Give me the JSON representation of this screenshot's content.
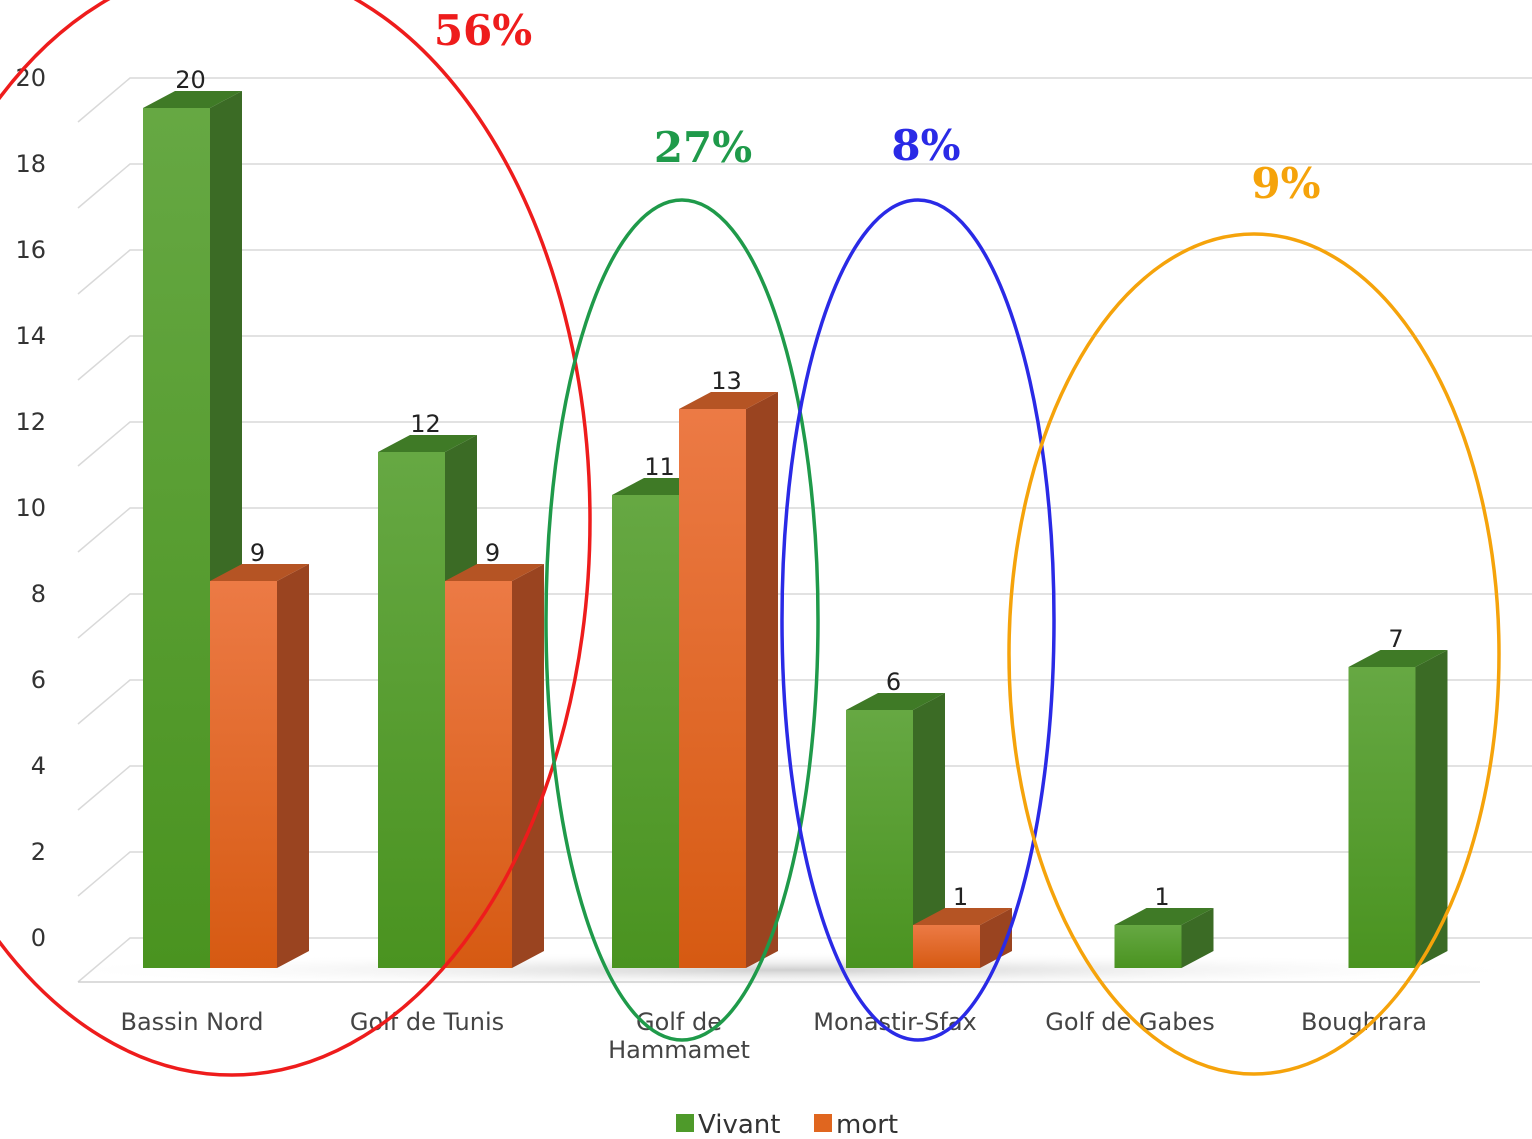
{
  "chart_data": {
    "type": "bar",
    "categories": [
      "Bassin Nord",
      "Golf de Tunis",
      "Golf de Hammamet",
      "Monastir-Sfax",
      "Golf de Gabes",
      "Boughrara"
    ],
    "series": [
      {
        "name": "Vivant",
        "values": [
          20,
          12,
          11,
          6,
          1,
          7
        ],
        "color": "#4e9a2a"
      },
      {
        "name": "mort",
        "values": [
          9,
          9,
          13,
          1,
          null,
          null
        ],
        "color": "#e0661f"
      }
    ],
    "ylim": [
      0,
      20
    ],
    "yticks": [
      0,
      2,
      4,
      6,
      8,
      10,
      12,
      14,
      16,
      18,
      20
    ],
    "grid": true,
    "legend": "bottom",
    "three_d": true,
    "annotations": [
      {
        "text": "56%",
        "color": "#ee1c1c",
        "groups": [
          "Bassin Nord",
          "Golf de Tunis"
        ]
      },
      {
        "text": "27%",
        "color": "#1f9a4a",
        "groups": [
          "Golf de Hammamet"
        ]
      },
      {
        "text": "8%",
        "color": "#2a2ae6",
        "groups": [
          "Monastir-Sfax"
        ]
      },
      {
        "text": "9%",
        "color": "#f5a30b",
        "groups": [
          "Golf de Gabes",
          "Boughrara"
        ]
      }
    ]
  }
}
